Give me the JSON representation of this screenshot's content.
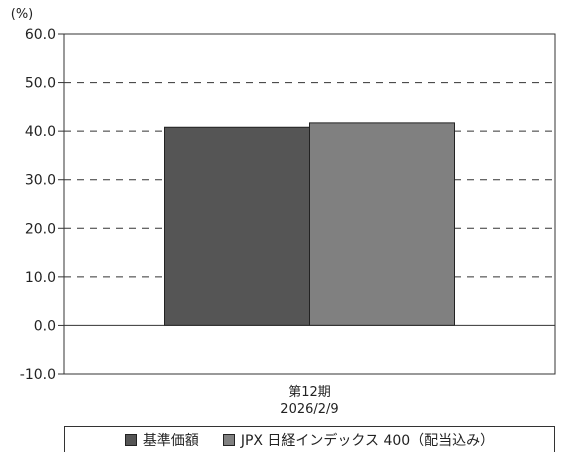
{
  "chart_data": {
    "type": "bar",
    "unit_label": "(%)",
    "categories": [
      "第12期\n2026/2/9"
    ],
    "category_lines": [
      "第12期",
      "2026/2/9"
    ],
    "series": [
      {
        "name": "基準価額",
        "values": [
          40.8
        ],
        "color": "#555555"
      },
      {
        "name": "JPX 日経インデックス 400（配当込み）",
        "values": [
          41.7
        ],
        "color": "#808080"
      }
    ],
    "ylim": [
      -10,
      60
    ],
    "yticks": [
      -10,
      0,
      10,
      20,
      30,
      40,
      50,
      60
    ],
    "ytick_labels": [
      "-10.0",
      "0.0",
      "10.0",
      "20.0",
      "30.0",
      "40.0",
      "50.0",
      "60.0"
    ],
    "grid": "dashed horizontal",
    "legend_position": "bottom"
  }
}
